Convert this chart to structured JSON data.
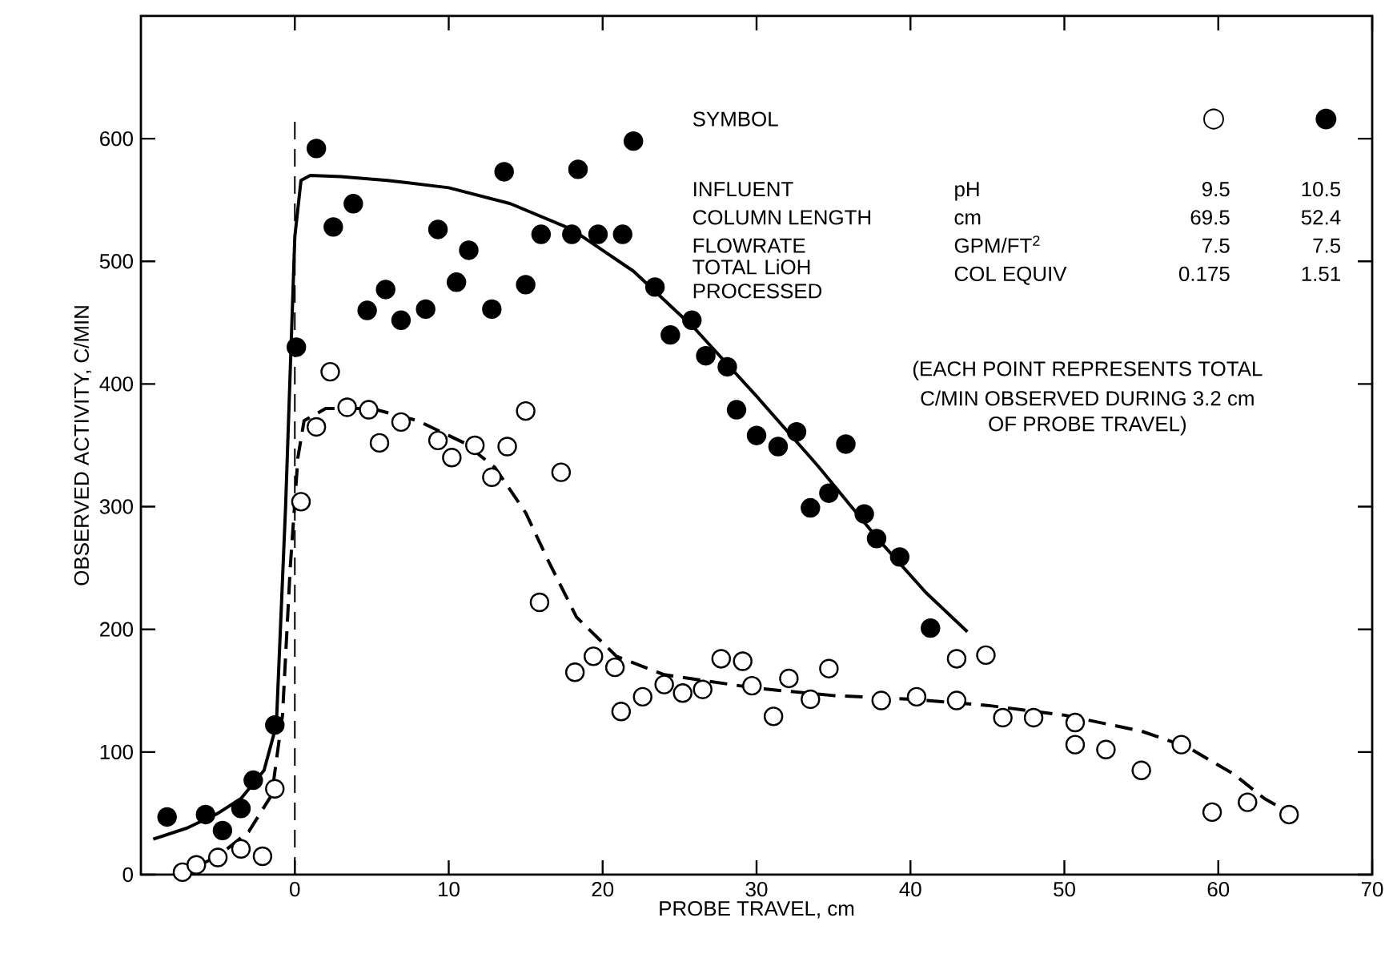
{
  "chart_data": {
    "type": "scatter",
    "xlabel": "PROBE TRAVEL, cm",
    "ylabel": "OBSERVED ACTIVITY, C/MIN",
    "xlim": [
      -10,
      70
    ],
    "ylim": [
      0,
      700
    ],
    "xticks": [
      0,
      10,
      20,
      30,
      40,
      50,
      60,
      70
    ],
    "yticks": [
      0,
      100,
      200,
      300,
      400,
      500,
      600
    ],
    "grid": false,
    "series": [
      {
        "marker": "circle",
        "color": "#000000",
        "x": [
          -8.3,
          -5.8,
          -4.7,
          -3.5,
          -2.7,
          -1.3,
          0.1,
          1.4,
          2.5,
          3.8,
          4.7,
          5.9,
          6.9,
          8.5,
          9.3,
          10.5,
          11.3,
          12.8,
          13.6,
          15.0,
          16.0,
          18.0,
          18.4,
          19.7,
          21.3,
          22.0,
          23.4,
          24.4,
          25.8,
          26.7,
          28.1,
          28.7,
          30.0,
          31.4,
          32.6,
          33.5,
          34.7,
          35.8,
          37.0,
          37.8,
          39.3,
          41.3
        ],
        "values": [
          47,
          49,
          36,
          54,
          77,
          122,
          430,
          592,
          528,
          547,
          460,
          477,
          452,
          461,
          526,
          483,
          509,
          461,
          573,
          481,
          522,
          522,
          575,
          522,
          522,
          598,
          479,
          440,
          452,
          423,
          414,
          379,
          358,
          349,
          361,
          299,
          311,
          351,
          294,
          274,
          259,
          201
        ]
      },
      {
        "marker": "circle",
        "color": "#ffffff",
        "x": [
          -7.3,
          -6.4,
          -5.0,
          -3.5,
          -2.1,
          -1.3,
          0.4,
          1.4,
          2.3,
          3.4,
          4.8,
          5.5,
          6.9,
          9.3,
          10.2,
          11.7,
          12.8,
          13.8,
          15.0,
          15.9,
          17.3,
          18.2,
          19.4,
          20.8,
          21.2,
          22.6,
          24.0,
          25.2,
          26.5,
          27.7,
          29.1,
          29.7,
          31.1,
          32.1,
          33.5,
          34.7,
          38.1,
          40.4,
          43.0,
          43.0,
          44.9,
          46.0,
          48.0,
          50.7,
          50.7,
          52.7,
          55.0,
          57.6,
          59.6,
          61.9,
          64.6
        ],
        "values": [
          2,
          8,
          14,
          21,
          15,
          70,
          304,
          365,
          410,
          381,
          379,
          352,
          369,
          354,
          340,
          350,
          324,
          349,
          378,
          222,
          328,
          165,
          178,
          169,
          133,
          145,
          155,
          148,
          151,
          176,
          174,
          154,
          129,
          160,
          143,
          168,
          142,
          145,
          176,
          142,
          179,
          128,
          128,
          124,
          106,
          102,
          85,
          106,
          51,
          59,
          49
        ]
      },
      {
        "type": "line",
        "marker": "none",
        "line_style": "solid",
        "color": "#000000",
        "x": [
          -9.2,
          -7,
          -5,
          -3.5,
          -2,
          -1.2,
          -0.6,
          0,
          0.4,
          1,
          3,
          6,
          10,
          14,
          18,
          22,
          26,
          30,
          34,
          38,
          41,
          43.7
        ],
        "values": [
          29,
          38,
          50,
          62,
          85,
          122,
          300,
          520,
          566,
          570,
          569,
          566,
          560,
          547,
          526,
          492,
          445,
          390,
          333,
          272,
          230,
          198
        ]
      },
      {
        "type": "line",
        "marker": "none",
        "line_style": "dashed",
        "color": "#000000",
        "x": [
          -7.5,
          -5,
          -3,
          -1.5,
          -0.8,
          -0.3,
          0.2,
          0.6,
          2,
          5,
          8,
          11,
          13,
          15,
          16.5,
          18.3,
          20.9,
          24,
          26.7,
          30,
          35,
          40,
          45,
          50,
          55,
          58,
          61,
          63,
          65
        ],
        "values": [
          0,
          15,
          35,
          65,
          130,
          250,
          340,
          370,
          380,
          380,
          370,
          352,
          332,
          295,
          255,
          210,
          178,
          163,
          158,
          152,
          146,
          143,
          138,
          130,
          117,
          104,
          82,
          62,
          48
        ]
      }
    ],
    "ref_lines": [
      {
        "axis": "x",
        "value": 0,
        "line_style": "dashed",
        "color": "#000000"
      }
    ],
    "annotations": [
      "SYMBOL",
      "INFLUENT",
      "pH",
      "9.5",
      "10.5",
      "COLUMN LENGTH",
      "cm",
      "69.5",
      "52.4",
      "FLOWRATE",
      "GPM/FT$^{2}$",
      "7.5",
      "7.5",
      "TOTAL LiOH PROCESSED",
      "COL EQUIV",
      "0.175",
      "1.51",
      "(EACH POINT REPRESENTS TOTAL",
      "C/MIN OBSERVED DURING 3.2 cm",
      "OF PROBE TRAVEL)",
      "○",
      "●"
    ]
  }
}
